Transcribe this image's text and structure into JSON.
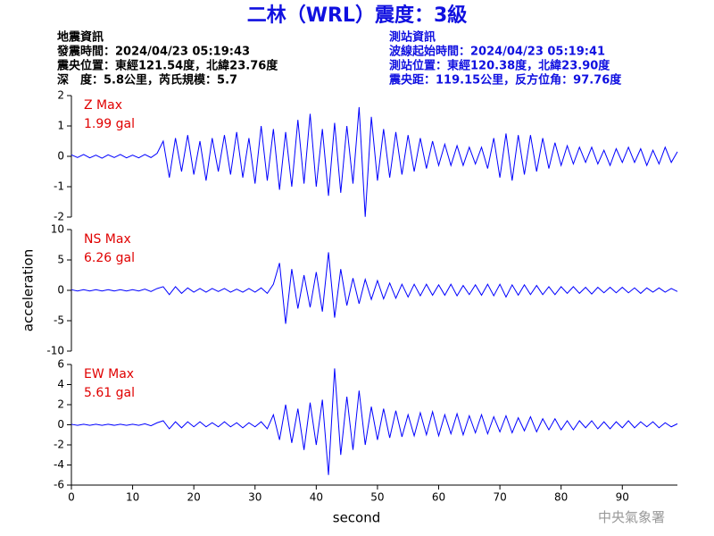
{
  "header": {
    "title": "二林（WRL）震度：3級",
    "left": [
      "地震資訊",
      "發震時間：2024/04/23 05:19:43",
      "震央位置：東經121.54度，北緯23.76度",
      "深　度：5.8公里，芮氏規模：5.7"
    ],
    "right": [
      "測站資訊",
      "波線起始時間：2024/04/23 05:19:41",
      "測站位置：東經120.38度，北緯23.90度",
      "震央距：119.15公里，反方位角：97.76度"
    ],
    "footer": "中央氣象署"
  },
  "chart_data": [
    {
      "type": "line",
      "annotations": [
        "Z Max",
        "1.99 gal"
      ],
      "color": "#0000ff",
      "xlim": [
        0,
        99
      ],
      "ylim": [
        -2,
        2
      ],
      "yticks": [
        -2,
        -1,
        0,
        1,
        2
      ],
      "x": [
        0,
        1,
        2,
        3,
        4,
        5,
        6,
        7,
        8,
        9,
        10,
        11,
        12,
        13,
        14,
        15,
        16,
        17,
        18,
        19,
        20,
        21,
        22,
        23,
        24,
        25,
        26,
        27,
        28,
        29,
        30,
        31,
        32,
        33,
        34,
        35,
        36,
        37,
        38,
        39,
        40,
        41,
        42,
        43,
        44,
        45,
        46,
        47,
        48,
        49,
        50,
        51,
        52,
        53,
        54,
        55,
        56,
        57,
        58,
        59,
        60,
        61,
        62,
        63,
        64,
        65,
        66,
        67,
        68,
        69,
        70,
        71,
        72,
        73,
        74,
        75,
        76,
        77,
        78,
        79,
        80,
        81,
        82,
        83,
        84,
        85,
        86,
        87,
        88,
        89,
        90,
        91,
        92,
        93,
        94,
        95,
        96,
        97,
        98,
        99
      ],
      "values": [
        0.05,
        -0.04,
        0.06,
        -0.05,
        0.04,
        -0.06,
        0.05,
        -0.04,
        0.06,
        -0.05,
        0.04,
        -0.05,
        0.06,
        -0.04,
        0.1,
        0.5,
        -0.7,
        0.6,
        -0.5,
        0.7,
        -0.6,
        0.5,
        -0.8,
        0.6,
        -0.5,
        0.7,
        -0.6,
        0.8,
        -0.7,
        0.6,
        -0.9,
        1.0,
        -0.8,
        0.9,
        -1.1,
        0.8,
        -1.0,
        1.2,
        -0.9,
        1.4,
        -1.0,
        0.9,
        -1.3,
        1.1,
        -1.2,
        1.0,
        -0.9,
        1.62,
        -1.99,
        1.3,
        -0.8,
        0.9,
        -0.7,
        0.8,
        -0.6,
        0.7,
        -0.5,
        0.6,
        -0.4,
        0.5,
        -0.3,
        0.4,
        -0.3,
        0.35,
        -0.3,
        0.3,
        -0.25,
        0.3,
        -0.4,
        0.6,
        -0.7,
        0.75,
        -0.8,
        0.7,
        -0.6,
        0.7,
        -0.5,
        0.6,
        -0.4,
        0.45,
        -0.3,
        0.35,
        -0.25,
        0.3,
        -0.2,
        0.3,
        -0.25,
        0.2,
        -0.3,
        0.25,
        -0.2,
        0.3,
        -0.2,
        0.25,
        -0.3,
        0.2,
        -0.25,
        0.3,
        -0.2,
        0.15
      ]
    },
    {
      "type": "line",
      "annotations": [
        "NS Max",
        "6.26 gal"
      ],
      "color": "#0000ff",
      "ylabel": "acceleration",
      "xlim": [
        0,
        99
      ],
      "ylim": [
        -10,
        10
      ],
      "yticks": [
        -10,
        -5,
        0,
        5,
        10
      ],
      "x": [
        0,
        1,
        2,
        3,
        4,
        5,
        6,
        7,
        8,
        9,
        10,
        11,
        12,
        13,
        14,
        15,
        16,
        17,
        18,
        19,
        20,
        21,
        22,
        23,
        24,
        25,
        26,
        27,
        28,
        29,
        30,
        31,
        32,
        33,
        34,
        35,
        36,
        37,
        38,
        39,
        40,
        41,
        42,
        43,
        44,
        45,
        46,
        47,
        48,
        49,
        50,
        51,
        52,
        53,
        54,
        55,
        56,
        57,
        58,
        59,
        60,
        61,
        62,
        63,
        64,
        65,
        66,
        67,
        68,
        69,
        70,
        71,
        72,
        73,
        74,
        75,
        76,
        77,
        78,
        79,
        80,
        81,
        82,
        83,
        84,
        85,
        86,
        87,
        88,
        89,
        90,
        91,
        92,
        93,
        94,
        95,
        96,
        97,
        98,
        99
      ],
      "values": [
        0.1,
        -0.1,
        0.1,
        -0.1,
        0.1,
        -0.1,
        0.1,
        -0.1,
        0.1,
        -0.1,
        0.1,
        -0.1,
        0.2,
        -0.2,
        0.3,
        0.6,
        -0.7,
        0.6,
        -0.5,
        0.4,
        -0.3,
        0.3,
        -0.3,
        0.3,
        -0.2,
        0.3,
        -0.3,
        0.2,
        -0.3,
        0.3,
        -0.3,
        0.4,
        -0.5,
        1.0,
        4.5,
        -5.5,
        3.5,
        -3.0,
        2.5,
        -2.8,
        3.0,
        -3.5,
        6.26,
        -4.5,
        3.5,
        -2.5,
        2.0,
        -2.2,
        1.8,
        -1.5,
        1.6,
        -1.4,
        1.2,
        -1.3,
        1.0,
        -1.1,
        1.0,
        -0.9,
        1.0,
        -0.8,
        0.9,
        -0.8,
        1.0,
        -0.9,
        0.8,
        -0.7,
        0.9,
        -0.8,
        1.0,
        -0.9,
        1.0,
        -1.1,
        0.9,
        -0.8,
        0.9,
        -0.7,
        0.8,
        -0.7,
        0.6,
        -0.7,
        0.6,
        -0.5,
        0.6,
        -0.5,
        0.5,
        -0.6,
        0.5,
        -0.4,
        0.5,
        -0.4,
        0.5,
        -0.4,
        0.4,
        -0.5,
        0.4,
        -0.3,
        0.4,
        -0.3,
        0.3,
        -0.2
      ]
    },
    {
      "type": "line",
      "annotations": [
        "EW Max",
        "5.61 gal"
      ],
      "color": "#0000ff",
      "xlabel": "second",
      "xlim": [
        0,
        99
      ],
      "xticks": [
        0,
        10,
        20,
        30,
        40,
        50,
        60,
        70,
        80,
        90
      ],
      "ylim": [
        -6,
        6
      ],
      "yticks": [
        -6,
        -4,
        -2,
        0,
        2,
        4,
        6
      ],
      "x": [
        0,
        1,
        2,
        3,
        4,
        5,
        6,
        7,
        8,
        9,
        10,
        11,
        12,
        13,
        14,
        15,
        16,
        17,
        18,
        19,
        20,
        21,
        22,
        23,
        24,
        25,
        26,
        27,
        28,
        29,
        30,
        31,
        32,
        33,
        34,
        35,
        36,
        37,
        38,
        39,
        40,
        41,
        42,
        43,
        44,
        45,
        46,
        47,
        48,
        49,
        50,
        51,
        52,
        53,
        54,
        55,
        56,
        57,
        58,
        59,
        60,
        61,
        62,
        63,
        64,
        65,
        66,
        67,
        68,
        69,
        70,
        71,
        72,
        73,
        74,
        75,
        76,
        77,
        78,
        79,
        80,
        81,
        82,
        83,
        84,
        85,
        86,
        87,
        88,
        89,
        90,
        91,
        92,
        93,
        94,
        95,
        96,
        97,
        98,
        99
      ],
      "values": [
        0.05,
        -0.05,
        0.05,
        -0.05,
        0.05,
        -0.05,
        0.05,
        -0.05,
        0.05,
        -0.05,
        0.05,
        -0.05,
        0.1,
        -0.1,
        0.2,
        0.4,
        -0.4,
        0.3,
        -0.3,
        0.3,
        -0.2,
        0.3,
        -0.2,
        0.2,
        -0.2,
        0.3,
        -0.2,
        0.2,
        -0.3,
        0.2,
        -0.2,
        0.3,
        -0.4,
        1.0,
        -1.5,
        2.0,
        -1.8,
        1.6,
        -2.5,
        2.2,
        -2.0,
        2.5,
        -5.0,
        5.61,
        -3.0,
        2.8,
        -2.5,
        3.4,
        -2.0,
        1.8,
        -1.5,
        1.6,
        -1.3,
        1.4,
        -1.2,
        1.0,
        -1.1,
        1.2,
        -1.0,
        1.3,
        -1.1,
        1.0,
        -0.9,
        1.1,
        -1.0,
        0.9,
        -0.8,
        1.0,
        -0.9,
        0.8,
        -0.7,
        0.9,
        -0.8,
        0.7,
        -0.6,
        0.8,
        -0.7,
        0.6,
        -0.5,
        0.6,
        -0.5,
        0.4,
        -0.5,
        0.4,
        -0.3,
        0.4,
        -0.4,
        0.3,
        -0.4,
        0.3,
        -0.3,
        0.4,
        -0.3,
        0.3,
        -0.2,
        0.3,
        -0.3,
        0.2,
        -0.2,
        0.1
      ]
    }
  ]
}
